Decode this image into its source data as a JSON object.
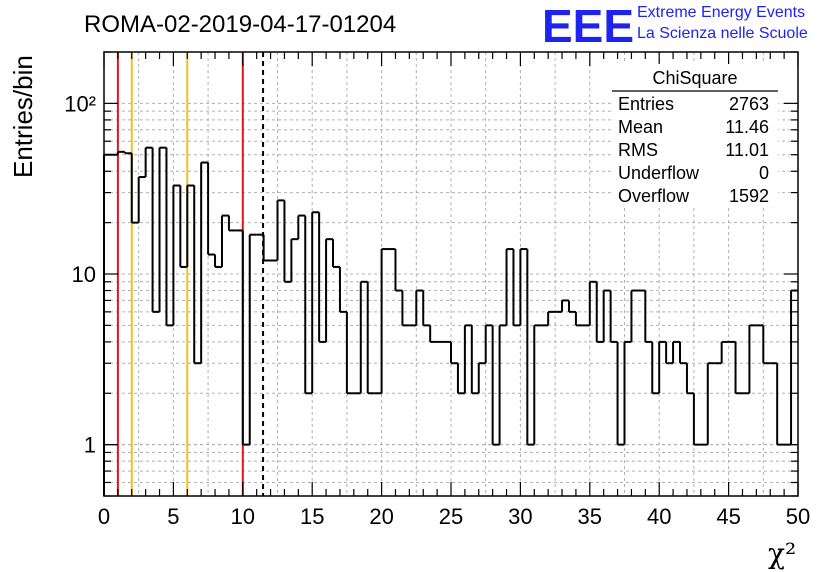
{
  "header": {
    "run_title": "ROMA-02-2019-04-17-01204",
    "logo_letters": "EEE",
    "logo_line1": "Extreme Energy Events",
    "logo_line2": "La Scienza nelle Scuole"
  },
  "stats_box": {
    "title": "ChiSquare",
    "rows": [
      {
        "label": "Entries",
        "value": "2763"
      },
      {
        "label": "Mean",
        "value": "11.46"
      },
      {
        "label": "RMS",
        "value": "11.01"
      },
      {
        "label": "Underflow",
        "value": "0"
      },
      {
        "label": "Overflow",
        "value": "1592"
      }
    ]
  },
  "colors": {
    "histogram": "#000000",
    "grid": "#b0b0b0",
    "red_line": "#e0141b",
    "yellow_line": "#f0c020",
    "dashed_line": "#000000",
    "logo": "#1f23f0"
  },
  "chart_data": {
    "type": "bar",
    "title": "ROMA-02-2019-04-17-01204",
    "xlabel": "χ²",
    "ylabel": "Entries/bin",
    "x_ticks": [
      "0",
      "5",
      "10",
      "15",
      "20",
      "25",
      "30",
      "35",
      "40",
      "45",
      "50"
    ],
    "y_ticks": [
      "1",
      "10",
      "10²"
    ],
    "x_log": false,
    "y_log": true,
    "xlim": [
      0,
      50
    ],
    "ylim": [
      0.5,
      200
    ],
    "grid": true,
    "bin_width": 0.5,
    "bin_start": 0,
    "values": [
      50,
      50,
      52,
      51,
      20,
      37,
      55,
      6,
      55,
      5,
      33,
      11,
      33,
      3,
      45,
      13,
      11,
      22,
      18,
      18,
      1,
      17,
      17,
      12,
      12,
      27,
      9,
      16,
      22,
      2,
      23,
      4,
      16,
      11,
      6,
      2,
      2,
      9,
      2,
      2,
      14,
      14,
      8,
      5,
      5,
      8,
      5,
      4,
      4,
      4,
      3,
      2,
      5,
      2,
      3,
      5,
      1,
      5,
      14,
      5,
      14,
      1,
      5,
      5,
      6,
      6,
      7,
      6,
      5,
      5,
      9,
      4,
      8,
      4,
      1,
      4,
      8,
      8,
      4,
      2,
      4,
      3,
      4,
      3,
      2,
      1,
      1,
      3,
      3,
      4,
      4,
      2,
      2,
      5,
      5,
      3,
      3,
      1,
      1,
      8
    ],
    "vertical_lines": [
      {
        "x": 1,
        "color": "red",
        "style": "solid"
      },
      {
        "x": 2,
        "color": "yellow",
        "style": "solid"
      },
      {
        "x": 6,
        "color": "yellow",
        "style": "solid"
      },
      {
        "x": 10,
        "color": "red",
        "style": "solid"
      },
      {
        "x": 11.46,
        "color": "black",
        "style": "dashed"
      }
    ]
  }
}
